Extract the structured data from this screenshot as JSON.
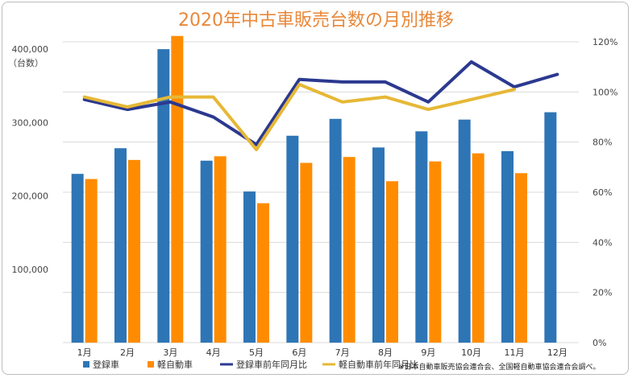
{
  "chart_data": {
    "type": "bar",
    "title": "2020年中古車販売台数の月別推移",
    "ylabel": "（台数）",
    "categories": [
      "1月",
      "2月",
      "3月",
      "4月",
      "5月",
      "6月",
      "7月",
      "8月",
      "9月",
      "10月",
      "11月",
      "12月"
    ],
    "ylim": [
      0,
      400000
    ],
    "y_ticks": [
      "100,000",
      "200,000",
      "300,000",
      "400,000"
    ],
    "y2lim": [
      0,
      120
    ],
    "y2_ticks": [
      "0%",
      "20%",
      "40%",
      "60%",
      "80%",
      "100%",
      "120%"
    ],
    "series": [
      {
        "name": "登録車",
        "kind": "bar",
        "color": "#2E75B6",
        "values": [
          230000,
          265000,
          400000,
          248000,
          206000,
          282000,
          305000,
          266000,
          288000,
          304000,
          261000,
          314000
        ]
      },
      {
        "name": "軽自動車",
        "kind": "bar",
        "color": "#FF8C00",
        "values": [
          223000,
          249000,
          418000,
          254000,
          190000,
          245000,
          253000,
          220000,
          247000,
          258000,
          231000,
          null
        ]
      },
      {
        "name": "登録車前年同月比",
        "kind": "line",
        "axis": "right",
        "color": "#2B3990",
        "values": [
          97,
          93,
          96,
          90,
          79,
          105,
          104,
          104,
          96,
          112,
          102,
          107
        ]
      },
      {
        "name": "軽自動車前年同月比",
        "kind": "line",
        "axis": "right",
        "color": "#E6B836",
        "values": [
          98,
          94,
          98,
          98,
          77,
          103,
          96,
          98,
          93,
          97,
          101,
          null
        ]
      }
    ],
    "grid": true,
    "legend": "bottom"
  },
  "note": "※日本自動車販売協会連合会、全国軽自動車協会連合会調べ。"
}
